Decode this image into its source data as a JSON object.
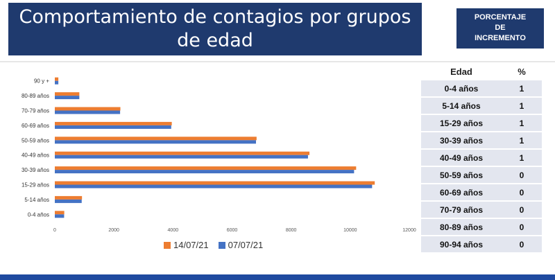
{
  "header": {
    "title_line1": "Comportamiento de contagios por grupos",
    "title_line2": "de edad",
    "badge_line1": "PORCENTAJE",
    "badge_line2": "DE",
    "badge_line3": "INCREMENTO"
  },
  "colors": {
    "banner": "#1f3a6e",
    "series1": "#ed7d31",
    "series2": "#4472c4"
  },
  "chart_data": {
    "type": "bar",
    "orientation": "horizontal",
    "categories": [
      "0-4 años",
      "5-14 años",
      "15-29 años",
      "30-39 años",
      "40-49 años",
      "50-59 años",
      "60-69 años",
      "70-79 años",
      "80-89 años",
      "90 y +"
    ],
    "series": [
      {
        "name": "14/07/21",
        "color": "#ed7d31",
        "values": [
          320,
          920,
          10830,
          10200,
          8620,
          6830,
          3960,
          2220,
          830,
          120
        ]
      },
      {
        "name": "07/07/21",
        "color": "#4472c4",
        "values": [
          315,
          910,
          10740,
          10130,
          8570,
          6810,
          3940,
          2210,
          830,
          120
        ]
      }
    ],
    "xlim": [
      0,
      12000
    ],
    "xticks": [
      0,
      2000,
      4000,
      6000,
      8000,
      10000,
      12000
    ],
    "legend_position": "bottom",
    "grid": false
  },
  "table": {
    "header_age": "Edad",
    "header_pct": "%",
    "rows": [
      {
        "age": "0-4 años",
        "pct": "1"
      },
      {
        "age": "5-14 años",
        "pct": "1"
      },
      {
        "age": "15-29 años",
        "pct": "1"
      },
      {
        "age": "30-39 años",
        "pct": "1"
      },
      {
        "age": "40-49 años",
        "pct": "1"
      },
      {
        "age": "50-59 años",
        "pct": "0"
      },
      {
        "age": "60-69 años",
        "pct": "0"
      },
      {
        "age": "70-79 años",
        "pct": "0"
      },
      {
        "age": "80-89 años",
        "pct": "0"
      },
      {
        "age": "90-94 años",
        "pct": "0"
      }
    ]
  }
}
